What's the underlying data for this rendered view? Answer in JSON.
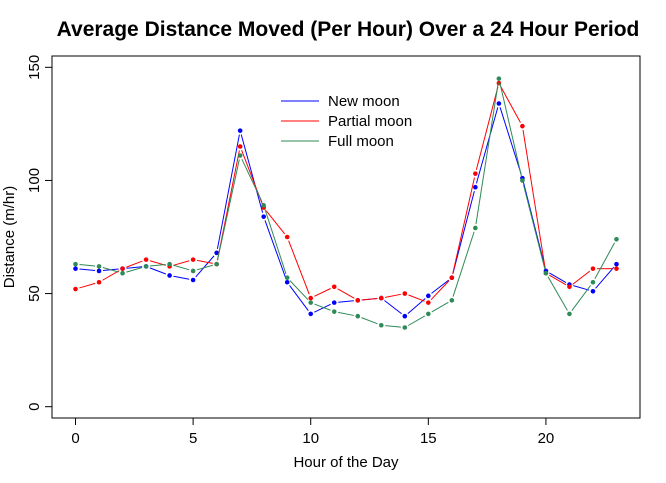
{
  "chart_data": {
    "type": "line",
    "title": "Average Distance Moved (Per Hour) Over a 24 Hour Period",
    "xlabel": "Hour of the Day",
    "ylabel": "Distance (m/hr)",
    "xlim": [
      -1,
      24
    ],
    "ylim": [
      -5,
      155
    ],
    "xticks": [
      0,
      5,
      10,
      15,
      20
    ],
    "yticks": [
      0,
      50,
      100,
      150
    ],
    "grid": false,
    "legend_position": "top-center",
    "x": [
      0,
      1,
      2,
      3,
      4,
      5,
      6,
      7,
      8,
      9,
      10,
      11,
      12,
      13,
      14,
      15,
      16,
      17,
      18,
      19,
      20,
      21,
      22,
      23
    ],
    "series": [
      {
        "name": "New moon",
        "color": "#0000ff",
        "values": [
          61,
          60,
          61,
          62,
          58,
          56,
          68,
          122,
          84,
          55,
          41,
          46,
          47,
          48,
          40,
          49,
          57,
          97,
          134,
          101,
          60,
          54,
          51,
          63
        ]
      },
      {
        "name": "Partial moon",
        "color": "#ff0000",
        "values": [
          52,
          55,
          61,
          65,
          62,
          65,
          63,
          115,
          88,
          75,
          48,
          53,
          47,
          48,
          50,
          46,
          57,
          103,
          143,
          124,
          59,
          53,
          61,
          61
        ]
      },
      {
        "name": "Full moon",
        "color": "#2e8b57",
        "values": [
          63,
          62,
          59,
          62,
          63,
          60,
          63,
          111,
          89,
          57,
          46,
          42,
          40,
          36,
          35,
          41,
          47,
          79,
          145,
          100,
          59,
          41,
          55,
          74
        ]
      }
    ]
  }
}
